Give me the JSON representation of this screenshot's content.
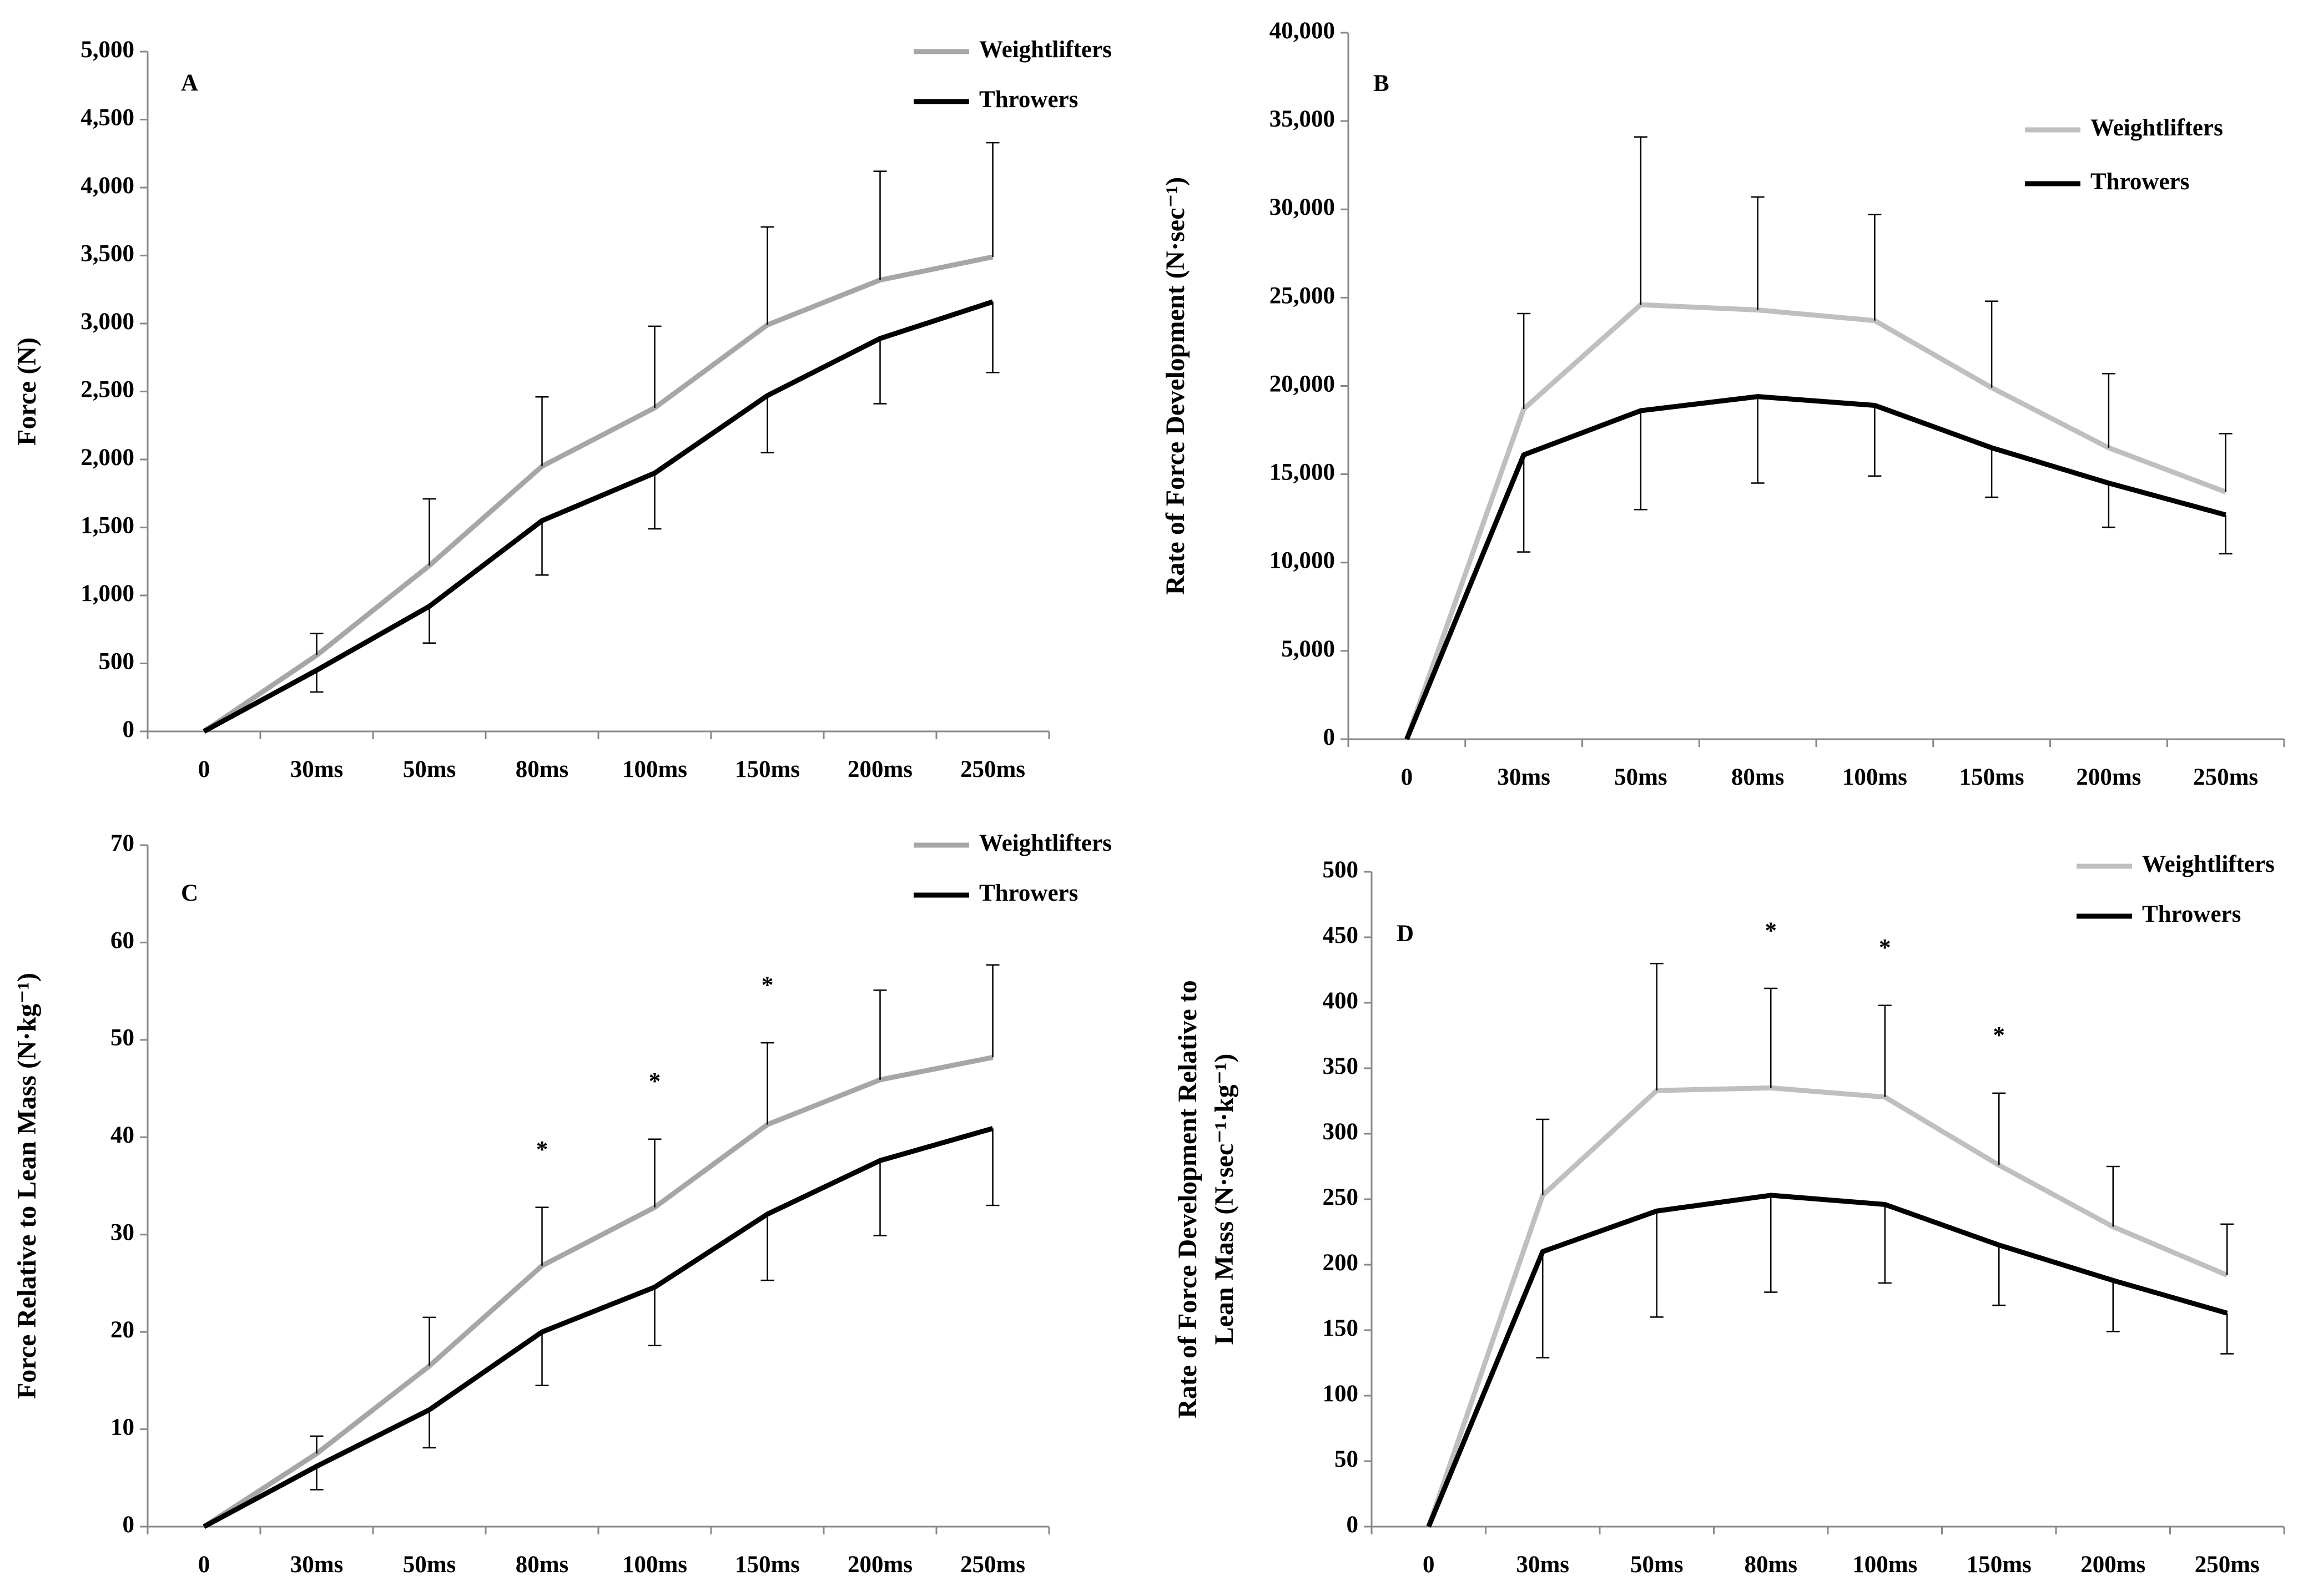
{
  "chart_data": [
    {
      "type": "line",
      "panel_label": "A",
      "ylabel": [
        "Force (N)"
      ],
      "legend": "upper right",
      "categories": [
        "0",
        "30ms",
        "50ms",
        "80ms",
        "100ms",
        "150ms",
        "200ms",
        "250ms"
      ],
      "ylim": [
        0,
        5000
      ],
      "yticks": [
        0,
        500,
        {
          "value": 1000,
          "label": "1,000"
        },
        {
          "value": 1500,
          "label": "1,500"
        },
        {
          "value": 2000,
          "label": "2,000"
        },
        {
          "value": 2500,
          "label": "2,500"
        },
        {
          "value": 3000,
          "label": "3,000"
        },
        {
          "value": 3500,
          "label": "3,500"
        },
        {
          "value": 4000,
          "label": "4,000"
        },
        {
          "value": 4500,
          "label": "4,500"
        },
        {
          "value": 5000,
          "label": "5,000"
        }
      ],
      "series": [
        {
          "name": "Weightlifters",
          "color": "#a6a6a6",
          "error_direction": "up",
          "values": [
            0,
            560,
            1220,
            1950,
            2380,
            2990,
            3320,
            3490
          ],
          "errors": [
            null,
            160,
            490,
            510,
            600,
            720,
            800,
            840
          ]
        },
        {
          "name": "Throwers",
          "color": "#000000",
          "error_direction": "down",
          "values": [
            0,
            450,
            920,
            1550,
            1900,
            2470,
            2890,
            3160
          ],
          "errors": [
            null,
            160,
            270,
            400,
            410,
            420,
            480,
            520
          ]
        }
      ]
    },
    {
      "type": "line",
      "panel_label": "B",
      "ylabel": [
        "Rate of Force Development (N·sec⁻¹)"
      ],
      "legend": "upper right",
      "categories": [
        "0",
        "30ms",
        "50ms",
        "80ms",
        "100ms",
        "150ms",
        "200ms",
        "250ms"
      ],
      "ylim": [
        0,
        40000
      ],
      "yticks": [
        0,
        {
          "value": 5000,
          "label": "5,000"
        },
        {
          "value": 10000,
          "label": "10,000"
        },
        {
          "value": 15000,
          "label": "15,000"
        },
        {
          "value": 20000,
          "label": "20,000"
        },
        {
          "value": 25000,
          "label": "25,000"
        },
        {
          "value": 30000,
          "label": "30,000"
        },
        {
          "value": 35000,
          "label": "35,000"
        },
        {
          "value": 40000,
          "label": "40,000"
        }
      ],
      "series": [
        {
          "name": "Weightlifters",
          "color": "#bfbfbf",
          "error_direction": "up",
          "values": [
            0,
            18700,
            24600,
            24300,
            23700,
            19900,
            16500,
            14000
          ],
          "errors": [
            null,
            5400,
            9500,
            6400,
            6000,
            4900,
            4200,
            3300
          ]
        },
        {
          "name": "Throwers",
          "color": "#000000",
          "error_direction": "down",
          "values": [
            0,
            16100,
            18600,
            19400,
            18900,
            16500,
            14500,
            12700
          ],
          "errors": [
            null,
            5500,
            5600,
            4900,
            4000,
            2800,
            2500,
            2200
          ]
        }
      ]
    },
    {
      "type": "line",
      "panel_label": "C",
      "ylabel": [
        "Force Relative to Lean Mass (N·kg⁻¹)"
      ],
      "legend": "upper right",
      "categories": [
        "0",
        "30ms",
        "50ms",
        "80ms",
        "100ms",
        "150ms",
        "200ms",
        "250ms"
      ],
      "ylim": [
        0,
        70
      ],
      "yticks": [
        0,
        10,
        20,
        30,
        40,
        50,
        60,
        70
      ],
      "annotations": [
        null,
        null,
        null,
        "*",
        "*",
        "*",
        null,
        null
      ],
      "series": [
        {
          "name": "Weightlifters",
          "color": "#a6a6a6",
          "error_direction": "up",
          "values": [
            0,
            7.5,
            16.5,
            26.8,
            32.8,
            41.3,
            45.9,
            48.2
          ],
          "errors": [
            null,
            1.8,
            5,
            6,
            7,
            8.4,
            9.2,
            9.5
          ]
        },
        {
          "name": "Throwers",
          "color": "#000000",
          "error_direction": "down",
          "values": [
            0,
            6.2,
            12,
            20,
            24.6,
            32.1,
            37.6,
            40.9
          ],
          "errors": [
            null,
            2.4,
            3.9,
            5.5,
            6,
            6.8,
            7.7,
            7.9
          ]
        }
      ]
    },
    {
      "type": "line",
      "panel_label": "D",
      "ylabel": [
        "Rate of Force Development Relative to",
        "Lean Mass (N·sec⁻¹·kg⁻¹)"
      ],
      "legend": "upper right",
      "categories": [
        "0",
        "30ms",
        "50ms",
        "80ms",
        "100ms",
        "150ms",
        "200ms",
        "250ms"
      ],
      "ylim": [
        0,
        500
      ],
      "yticks": [
        0,
        50,
        100,
        150,
        200,
        250,
        300,
        350,
        400,
        450,
        500
      ],
      "annotations": [
        null,
        null,
        null,
        "*",
        "*",
        "*",
        null,
        null
      ],
      "series": [
        {
          "name": "Weightlifters",
          "color": "#bfbfbf",
          "error_direction": "up",
          "values": [
            0,
            253,
            333,
            335,
            328,
            276,
            229,
            192
          ],
          "errors": [
            null,
            58,
            97,
            76,
            70,
            55,
            46,
            39
          ]
        },
        {
          "name": "Throwers",
          "color": "#000000",
          "error_direction": "down",
          "values": [
            0,
            210,
            241,
            253,
            246,
            215,
            188,
            163
          ],
          "errors": [
            null,
            81,
            81,
            74,
            60,
            46,
            39,
            31
          ]
        }
      ]
    }
  ]
}
